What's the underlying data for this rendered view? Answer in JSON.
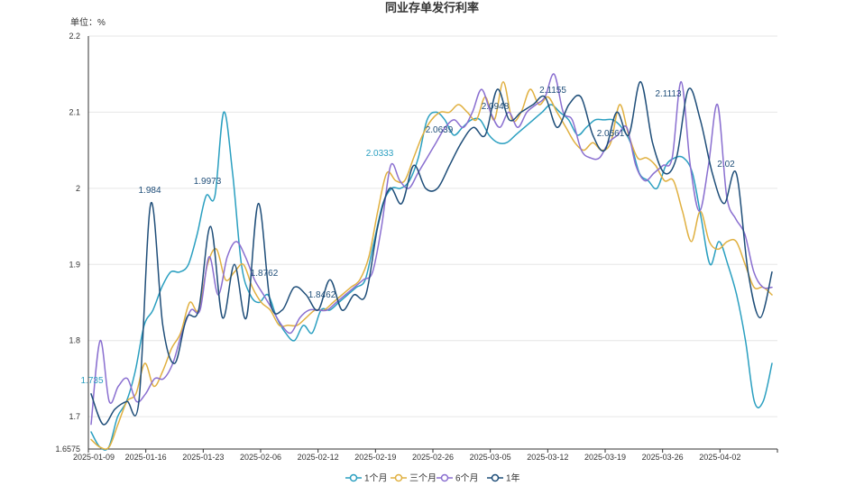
{
  "chart_data": {
    "type": "line",
    "title": "同业存单发行利率",
    "unit_label": "单位：%",
    "y_axis_min_label": "1.6575",
    "ylim": [
      1.6575,
      2.2
    ],
    "yticks": [
      "1.7",
      "1.8",
      "1.9",
      "2",
      "2.1",
      "2.2"
    ],
    "x_tick_labels": [
      "2025-01-09",
      "2025-01-16",
      "2025-01-23",
      "2025-02-06",
      "2025-02-12",
      "2025-02-19",
      "2025-02-26",
      "2025-03-05",
      "2025-03-12",
      "2025-03-19",
      "2025-03-26",
      "2025-04-02"
    ],
    "grid": "horizontal",
    "legend_position": "bottom",
    "series": [
      {
        "name": "1个月",
        "color": "#2a9fc0",
        "values": [
          1.68,
          1.66,
          1.66,
          1.7,
          1.72,
          1.76,
          1.82,
          1.84,
          1.87,
          1.89,
          1.89,
          1.9,
          1.94,
          1.99,
          1.99,
          2.1,
          2.02,
          1.9,
          1.86,
          1.85,
          1.86,
          1.83,
          1.81,
          1.8,
          1.82,
          1.81,
          1.84,
          1.84,
          1.85,
          1.86,
          1.87,
          1.88,
          1.93,
          1.98,
          2.0,
          2.0,
          2.01,
          2.04,
          2.09,
          2.1,
          2.09,
          2.07,
          2.08,
          2.09,
          2.09,
          2.07,
          2.06,
          2.06,
          2.07,
          2.08,
          2.09,
          2.1,
          2.11,
          2.1,
          2.09,
          2.07,
          2.08,
          2.09,
          2.09,
          2.09,
          2.08,
          2.06,
          2.02,
          2.01,
          2.0,
          2.03,
          2.04,
          2.04,
          2.02,
          1.96,
          1.9,
          1.93,
          1.9,
          1.86,
          1.8,
          1.72,
          1.72,
          1.77
        ]
      },
      {
        "name": "三个月",
        "color": "#e0b040",
        "values": [
          1.67,
          1.66,
          1.66,
          1.69,
          1.72,
          1.73,
          1.77,
          1.74,
          1.76,
          1.79,
          1.81,
          1.85,
          1.84,
          1.9,
          1.92,
          1.88,
          1.89,
          1.9,
          1.87,
          1.85,
          1.84,
          1.82,
          1.82,
          1.82,
          1.83,
          1.84,
          1.84,
          1.85,
          1.86,
          1.87,
          1.88,
          1.91,
          1.97,
          2.02,
          2.01,
          2.01,
          2.04,
          2.07,
          2.09,
          2.1,
          2.1,
          2.11,
          2.1,
          2.09,
          2.12,
          2.09,
          2.14,
          2.09,
          2.1,
          2.13,
          2.11,
          2.12,
          2.1,
          2.08,
          2.06,
          2.05,
          2.06,
          2.05,
          2.06,
          2.11,
          2.07,
          2.04,
          2.04,
          2.03,
          2.01,
          2.01,
          1.97,
          1.93,
          1.97,
          1.93,
          1.92,
          1.93,
          1.93,
          1.9,
          1.87,
          1.87,
          1.86
        ]
      },
      {
        "name": "6个月",
        "color": "#8a6fd0",
        "values": [
          1.69,
          1.8,
          1.72,
          1.74,
          1.75,
          1.72,
          1.73,
          1.75,
          1.75,
          1.77,
          1.81,
          1.84,
          1.84,
          1.91,
          1.86,
          1.91,
          1.93,
          1.91,
          1.88,
          1.86,
          1.84,
          1.82,
          1.81,
          1.83,
          1.84,
          1.84,
          1.84,
          1.85,
          1.86,
          1.87,
          1.88,
          1.89,
          1.95,
          2.03,
          2.01,
          2.0,
          2.02,
          2.04,
          2.06,
          2.08,
          2.09,
          2.08,
          2.1,
          2.13,
          2.1,
          2.08,
          2.1,
          2.08,
          2.1,
          2.11,
          2.12,
          2.15,
          2.1,
          2.09,
          2.05,
          2.04,
          2.04,
          2.06,
          2.07,
          2.08,
          2.03,
          2.01,
          2.02,
          2.03,
          2.04,
          2.14,
          2.03,
          1.97,
          2.03,
          2.11,
          1.99,
          1.96,
          1.94,
          1.89,
          1.87,
          1.87
        ]
      },
      {
        "name": "1年",
        "color": "#1f4e79",
        "values": [
          1.73,
          1.69,
          1.71,
          1.72,
          1.72,
          1.98,
          1.82,
          1.77,
          1.83,
          1.84,
          1.95,
          1.83,
          1.9,
          1.83,
          1.98,
          1.85,
          1.84,
          1.87,
          1.86,
          1.84,
          1.88,
          1.84,
          1.86,
          1.86,
          1.95,
          2.0,
          1.98,
          2.03,
          2.0,
          2.0,
          2.03,
          2.06,
          2.08,
          2.07,
          2.13,
          2.09,
          2.1,
          2.11,
          2.12,
          2.08,
          2.11,
          2.12,
          2.07,
          2.05,
          2.1,
          2.07,
          2.14,
          2.06,
          2.02,
          2.04,
          2.13,
          2.09,
          2.02,
          1.98,
          2.02,
          1.89,
          1.83,
          1.89
        ]
      }
    ],
    "annotations": [
      "1.735",
      "1.984",
      "1.9973",
      "1.8762",
      "1.8462",
      "2.0333",
      "2.0639",
      "2.0948",
      "2.1155",
      "2.0561",
      "2.1113",
      "2.02"
    ]
  },
  "legend": {
    "items": [
      "1个月",
      "三个月",
      "6个月",
      "1年"
    ]
  }
}
